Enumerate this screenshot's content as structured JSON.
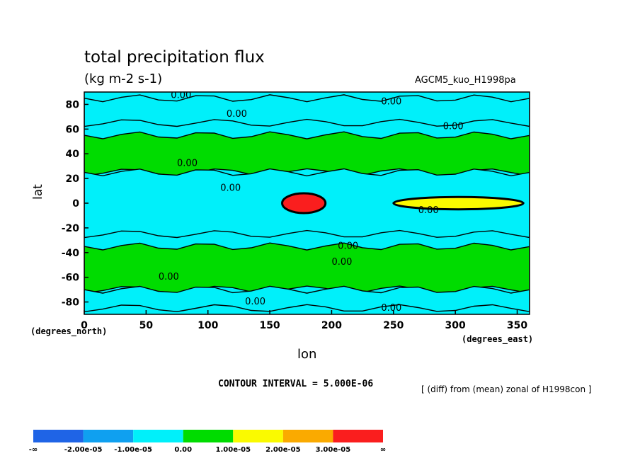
{
  "chart_data": {
    "type": "heatmap",
    "title": "total precipitation flux",
    "units": "(kg m-2 s-1)",
    "model_label": "AGCM5_kuo_H1998pa",
    "xlabel": "lon",
    "ylabel": "lat",
    "x_unit_label": "(degrees_east)",
    "y_unit_label": "(degrees_north)",
    "xlim": [
      0,
      360
    ],
    "ylim": [
      -90,
      90
    ],
    "x_ticks": [
      "0",
      "50",
      "100",
      "150",
      "200",
      "250",
      "300",
      "350"
    ],
    "x_tick_values": [
      0,
      50,
      100,
      150,
      200,
      250,
      300,
      350
    ],
    "y_ticks": [
      "80",
      "60",
      "40",
      "20",
      "0",
      "-20",
      "-40",
      "-60",
      "-80"
    ],
    "y_tick_values": [
      80,
      60,
      40,
      20,
      0,
      -20,
      -40,
      -60,
      -80
    ],
    "contour_interval": "CONTOUR INTERVAL = 5.000E-06",
    "contour_label": "0.00",
    "description_note": "[ (diff) from (mean) zonal of H1998con ]",
    "colorbar": {
      "labels": [
        "-∞",
        "-2.00e-05",
        "-1.00e-05",
        "0.00",
        "1.00e-05",
        "2.00e-05",
        "3.00e-05",
        "∞"
      ],
      "colors": [
        "#1f64e6",
        "#0fa0f0",
        "#00f0fa",
        "#00dc00",
        "#fafa00",
        "#faaa00",
        "#fa1e1e"
      ]
    },
    "regions": [
      {
        "name": "band-north-polar-negative",
        "lon": [
          0,
          360
        ],
        "lat": [
          65,
          85
        ],
        "level": "cyan"
      },
      {
        "name": "band-north-mid-positive",
        "lon": [
          0,
          360
        ],
        "lat": [
          25,
          55
        ],
        "level": "green"
      },
      {
        "name": "band-tropics-negative",
        "lon": [
          0,
          360
        ],
        "lat": [
          -25,
          25
        ],
        "level": "cyan"
      },
      {
        "name": "warm-pool-anomaly",
        "lon": [
          160,
          195
        ],
        "lat": [
          -8,
          8
        ],
        "level": "red"
      },
      {
        "name": "itcz-east",
        "lon": [
          250,
          355
        ],
        "lat": [
          -5,
          5
        ],
        "level": "yellow"
      },
      {
        "name": "band-south-mid-positive",
        "lon": [
          0,
          360
        ],
        "lat": [
          -70,
          -35
        ],
        "level": "green"
      },
      {
        "name": "band-south-polar-negative",
        "lon": [
          0,
          360
        ],
        "lat": [
          -85,
          -70
        ],
        "level": "cyan"
      }
    ]
  }
}
